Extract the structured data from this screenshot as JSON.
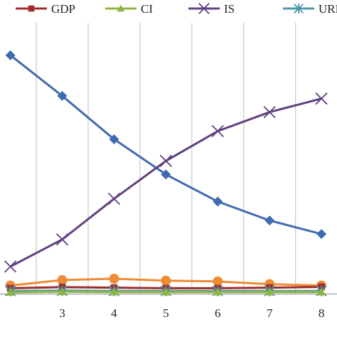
{
  "chart_data": {
    "type": "line",
    "title": "",
    "xlabel": "",
    "ylabel": "",
    "grid": {
      "vertical": true,
      "horizontal": false
    },
    "legend_position": "top",
    "x_ticks": [
      3,
      4,
      5,
      6,
      7,
      8
    ],
    "xlim": [
      1.8,
      8.3
    ],
    "ylim": [
      0,
      1.0
    ],
    "legend": [
      {
        "label": "GDP",
        "color": "#9e2a2b",
        "marker": "square"
      },
      {
        "label": "CI",
        "color": "#8db542",
        "marker": "triangle"
      },
      {
        "label": "IS",
        "color": "#60407f",
        "marker": "x"
      },
      {
        "label": "URB",
        "color": "#4a9aa8",
        "marker": "star"
      },
      {
        "label": "",
        "color": "#ee8b34",
        "marker": "circle"
      }
    ],
    "series": [
      {
        "color": "#3f6cb0",
        "marker": "diamond",
        "x": [
          2,
          3,
          4,
          5,
          6,
          7,
          8
        ],
        "y": [
          0.88,
          0.73,
          0.57,
          0.44,
          0.34,
          0.27,
          0.22
        ]
      },
      {
        "name": "IS",
        "color": "#60407f",
        "marker": "x",
        "x": [
          2,
          3,
          4,
          5,
          6,
          7,
          8
        ],
        "y": [
          0.1,
          0.2,
          0.35,
          0.49,
          0.6,
          0.67,
          0.72
        ]
      },
      {
        "color": "#ee8b34",
        "marker": "circle",
        "x": [
          2,
          3,
          4,
          5,
          6,
          7,
          8
        ],
        "y": [
          0.03,
          0.05,
          0.055,
          0.048,
          0.045,
          0.035,
          0.03
        ]
      },
      {
        "name": "GDP",
        "color": "#9e2a2b",
        "marker": "square",
        "x": [
          2,
          3,
          4,
          5,
          6,
          7,
          8
        ],
        "y": [
          0.02,
          0.024,
          0.022,
          0.02,
          0.02,
          0.022,
          0.025
        ]
      },
      {
        "name": "URB",
        "color": "#4a9aa8",
        "marker": "star",
        "x": [
          2,
          3,
          4,
          5,
          6,
          7,
          8
        ],
        "y": [
          0.01,
          0.011,
          0.01,
          0.01,
          0.01,
          0.01,
          0.01
        ]
      },
      {
        "name": "CI",
        "color": "#8db542",
        "marker": "triangle",
        "x": [
          2,
          3,
          4,
          5,
          6,
          7,
          8
        ],
        "y": [
          0.005,
          0.007,
          0.006,
          0.006,
          0.006,
          0.006,
          0.006
        ]
      }
    ]
  }
}
